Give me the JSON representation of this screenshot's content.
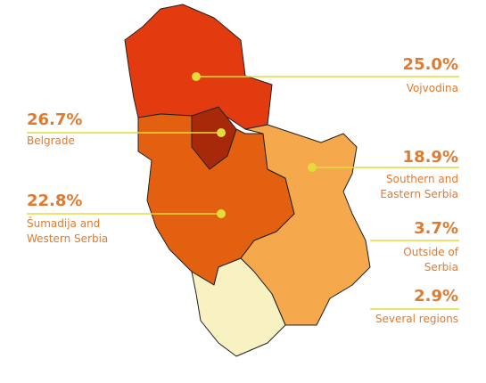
{
  "regions": [
    {
      "name": "Vojvodina",
      "value": 25.0,
      "value_label": "25.0%",
      "color": "#e23b10"
    },
    {
      "name": "Belgrade",
      "value": 26.7,
      "value_label": "26.7%",
      "color": "#a8290a"
    },
    {
      "name": "Southern and Eastern Serbia",
      "value": 18.9,
      "value_label": "18.9%",
      "color": "#f6a84c"
    },
    {
      "name": "Šumadija and Western Serbia",
      "value": 22.8,
      "value_label": "22.8%",
      "color": "#e2600f"
    },
    {
      "name": "Outside of Serbia",
      "value": 3.7,
      "value_label": "3.7%",
      "color": "#e07a30"
    },
    {
      "name": "Several regions",
      "value": 2.9,
      "value_label": "2.9%",
      "color": "#e07a30"
    }
  ]
}
